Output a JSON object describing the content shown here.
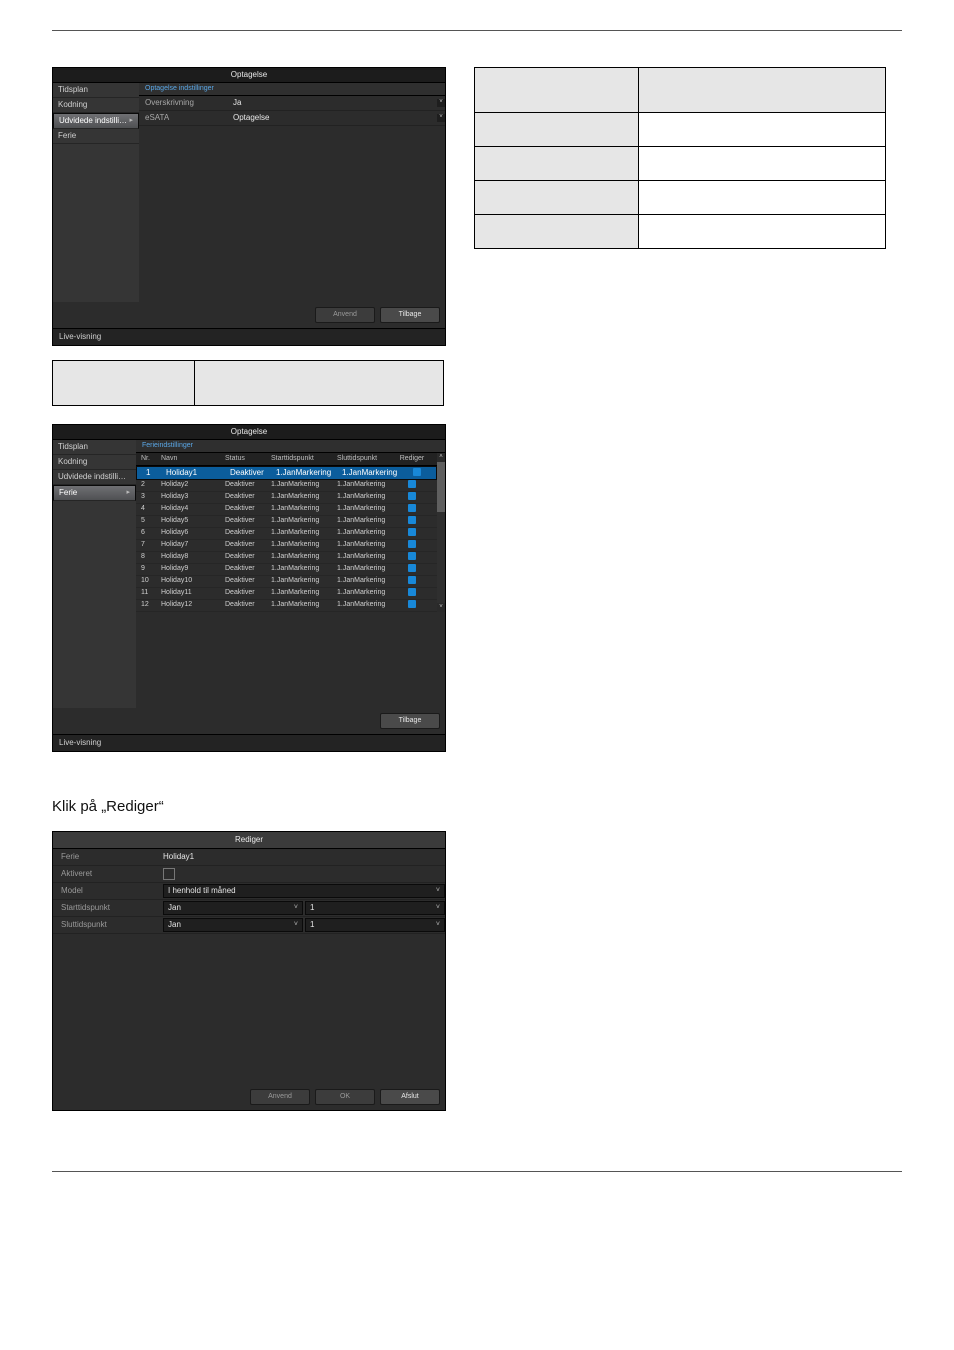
{
  "shot1": {
    "title": "Optagelse",
    "sidebar": {
      "items": [
        {
          "label": "Tidsplan",
          "sel": false
        },
        {
          "label": "Kodning",
          "sel": false
        },
        {
          "label": "Udvidede indstilli…",
          "sel": true,
          "chev": true
        },
        {
          "label": "Ferie",
          "sel": false
        }
      ]
    },
    "tab": "Optagelse  indstillinger",
    "rows": [
      {
        "label": "Overskrivning",
        "value": "Ja"
      },
      {
        "label": "eSATA",
        "value": "Optagelse"
      }
    ],
    "buttons": {
      "apply": "Anvend",
      "back": "Tilbage"
    },
    "live": "Live-visning"
  },
  "rightTable": {
    "col1w": 164,
    "col2w": 248
  },
  "leftTable": {
    "col1w": 142,
    "col2w": 250
  },
  "shot2": {
    "title": "Optagelse",
    "sidebar": {
      "items": [
        {
          "label": "Tidsplan",
          "sel": false
        },
        {
          "label": "Kodning",
          "sel": false
        },
        {
          "label": "Udvidede indstilli…",
          "sel": false
        },
        {
          "label": "Ferie",
          "sel": true,
          "chev": true
        }
      ]
    },
    "tab": "Ferieindstillinger",
    "cols": {
      "nr": "Nr.",
      "navn": "Navn",
      "status": "Status",
      "start": "Starttidspunkt",
      "slut": "Sluttidspunkt",
      "edit": "Rediger"
    },
    "statusTxt": "Deaktiver",
    "startTxt": "1.JanMarkering",
    "slutTxt": "1.JanMarkering",
    "rows": [
      {
        "nr": "1",
        "navn": "Holiday1",
        "sel": true
      },
      {
        "nr": "2",
        "navn": "Holiday2"
      },
      {
        "nr": "3",
        "navn": "Holiday3"
      },
      {
        "nr": "4",
        "navn": "Holiday4"
      },
      {
        "nr": "5",
        "navn": "Holiday5"
      },
      {
        "nr": "6",
        "navn": "Holiday6"
      },
      {
        "nr": "7",
        "navn": "Holiday7"
      },
      {
        "nr": "8",
        "navn": "Holiday8"
      },
      {
        "nr": "9",
        "navn": "Holiday9"
      },
      {
        "nr": "10",
        "navn": "Holiday10"
      },
      {
        "nr": "11",
        "navn": "Holiday11"
      },
      {
        "nr": "12",
        "navn": "Holiday12"
      }
    ],
    "buttons": {
      "back": "Tilbage"
    },
    "live": "Live-visning"
  },
  "caption": "Klik på „Rediger“",
  "shot3": {
    "title": "Rediger",
    "rows": {
      "ferie": {
        "label": "Ferie",
        "value": "Holiday1"
      },
      "aktiveret": {
        "label": "Aktiveret"
      },
      "model": {
        "label": "Model",
        "value": "I henhold til måned"
      },
      "start": {
        "label": "Starttidspunkt",
        "m": "Jan",
        "d": "1"
      },
      "slut": {
        "label": "Sluttidspunkt",
        "m": "Jan",
        "d": "1"
      }
    },
    "buttons": {
      "apply": "Anvend",
      "ok": "OK",
      "exit": "Afslut"
    }
  }
}
